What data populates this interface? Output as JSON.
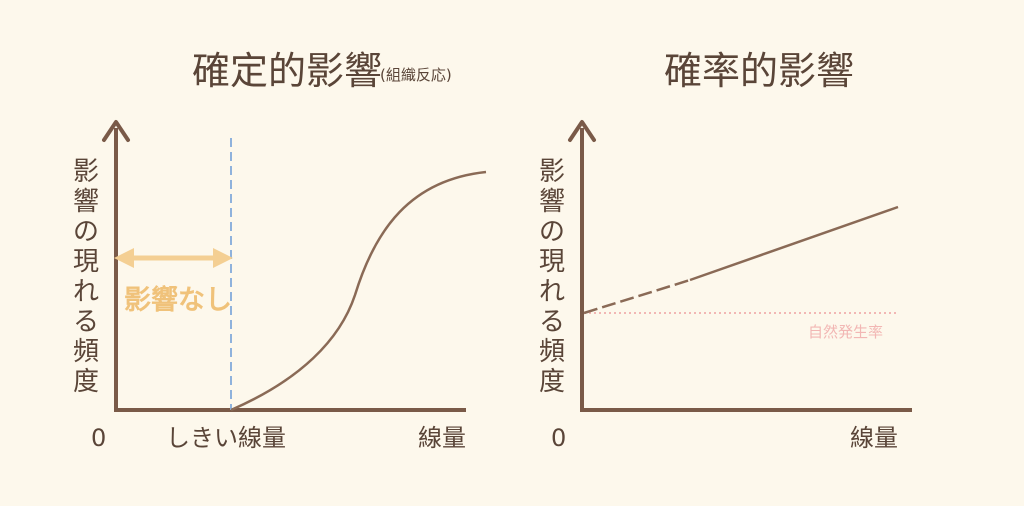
{
  "colors": {
    "background": "#fdf8ec",
    "axis": "#7a5a48",
    "curve": "#8a6a56",
    "threshold": "#8fb2dc",
    "no_effect": "#f4cf93",
    "natural_rate": "#f2b7b4",
    "text": "#5a4538"
  },
  "left": {
    "title": "確定的影響",
    "title_sub": "(組織反応)",
    "ylabel_chars": [
      "影",
      "響",
      "の",
      "現",
      "れ",
      "る",
      "頻",
      "度"
    ],
    "origin_label": "0",
    "threshold_label": "しきい線量",
    "xlabel": "線量",
    "no_effect_label": "影響なし"
  },
  "right": {
    "title": "確率的影響",
    "ylabel_chars": [
      "影",
      "響",
      "の",
      "現",
      "れ",
      "る",
      "頻",
      "度"
    ],
    "origin_label": "0",
    "xlabel": "線量",
    "natural_rate_label": "自然発生率"
  }
}
